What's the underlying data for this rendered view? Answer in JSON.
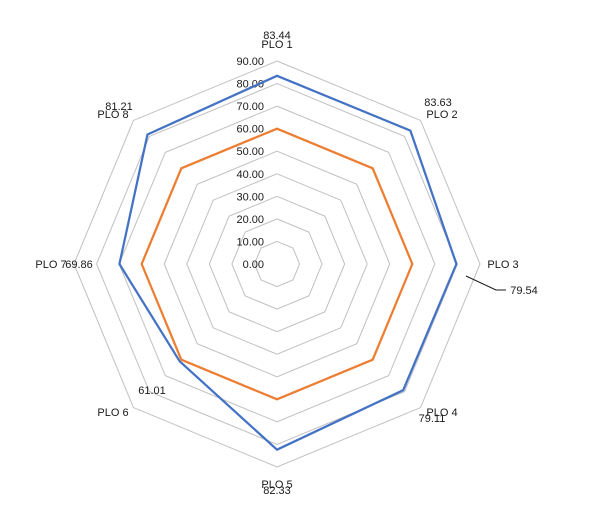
{
  "chart_data": {
    "type": "radar",
    "categories": [
      "PLO 1",
      "PLO 2",
      "PLO 3",
      "PLO 4",
      "PLO 5",
      "PLO 6",
      "PLO 7",
      "PLO 8"
    ],
    "rlim": [
      0,
      90
    ],
    "ticks": [
      "0.00",
      "10.00",
      "20.00",
      "30.00",
      "40.00",
      "50.00",
      "60.00",
      "70.00",
      "80.00",
      "90.00"
    ],
    "grid": true,
    "series": [
      {
        "color": "#4472c4",
        "values": [
          83.44,
          83.63,
          79.54,
          79.11,
          82.33,
          61.01,
          69.86,
          81.21
        ],
        "data_labels": [
          "83.44",
          "83.63",
          "79.54",
          "79.11",
          "82.33",
          "61.01",
          "69.86",
          "81.21"
        ]
      },
      {
        "color": "#ed7d31",
        "values": [
          60,
          60,
          60,
          60,
          60,
          60,
          60,
          60
        ]
      }
    ],
    "grid_color": "#c0c0c0"
  }
}
